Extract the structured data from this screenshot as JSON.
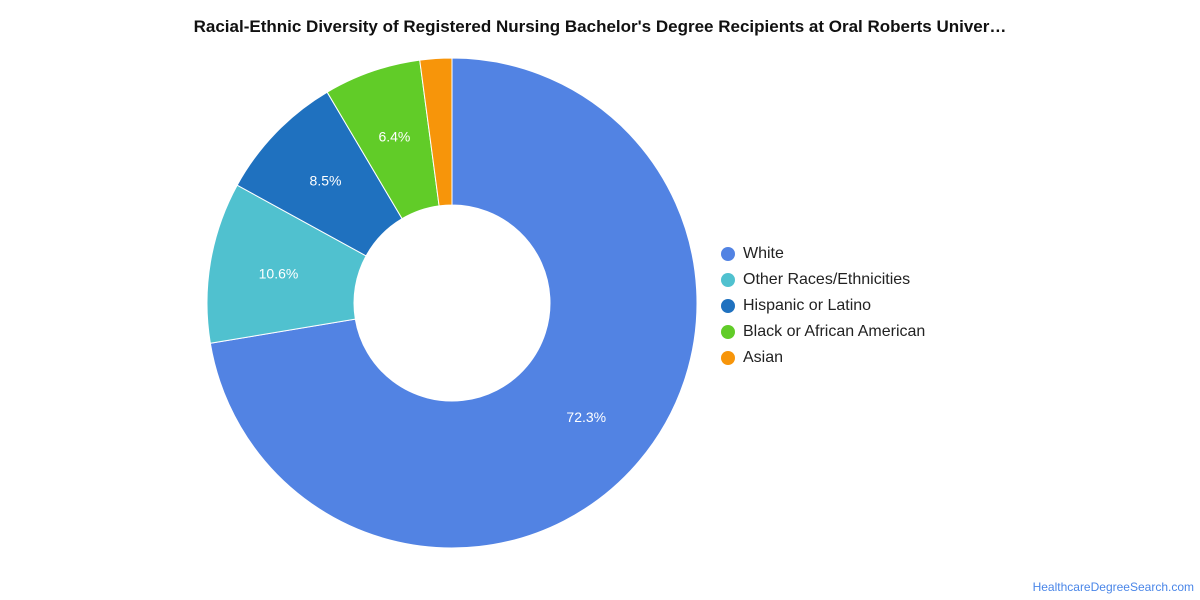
{
  "chart_data": {
    "type": "pie",
    "title": "Racial-Ethnic Diversity of Registered Nursing Bachelor's Degree Recipients at Oral Roberts Univer…",
    "donut": true,
    "legend_position": "right",
    "slices": [
      {
        "label": "White",
        "value": 72.3,
        "display": "72.3%",
        "color": "#5283e3"
      },
      {
        "label": "Other Races/Ethnicities",
        "value": 10.6,
        "display": "10.6%",
        "color": "#50c1cf"
      },
      {
        "label": "Hispanic or Latino",
        "value": 8.5,
        "display": "8.5%",
        "color": "#1f71bf"
      },
      {
        "label": "Black or African American",
        "value": 6.4,
        "display": "6.4%",
        "color": "#61cc28"
      },
      {
        "label": "Asian",
        "value": 2.1,
        "display": "",
        "color": "#f7950a"
      }
    ]
  },
  "footer": {
    "source_link": "HealthcareDegreeSearch.com"
  }
}
